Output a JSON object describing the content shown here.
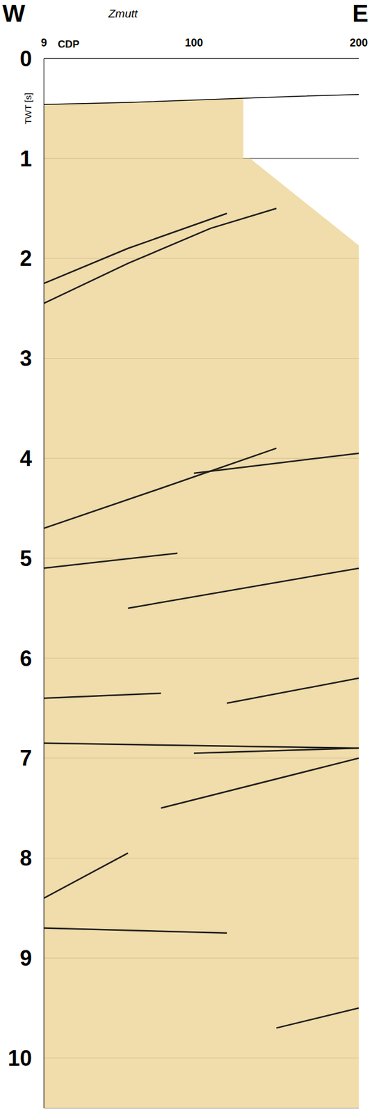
{
  "chart_data": {
    "type": "line",
    "title": "Zmutt",
    "annotations": [
      "W",
      "E"
    ],
    "x_label": "CDP",
    "y_label": "TWT [s]",
    "xlim": [
      9,
      200
    ],
    "xticks": [
      9,
      100,
      200
    ],
    "ylim": [
      0,
      10.5
    ],
    "yticks": [
      0,
      1,
      2,
      3,
      4,
      5,
      6,
      7,
      8,
      9,
      10
    ],
    "grid": true,
    "series": [
      {
        "type": "area",
        "color": "#efd79c",
        "x": [
          9,
          60,
          110,
          130,
          130,
          134,
          200
        ],
        "values": [
          0.46,
          0.44,
          0.41,
          0.4,
          1.0,
          1.0,
          1.87
        ]
      },
      {
        "type": "line",
        "color": "#000000",
        "x": [
          9,
          60,
          110,
          160,
          200
        ],
        "values": [
          0.46,
          0.44,
          0.41,
          0.38,
          0.36
        ]
      },
      {
        "type": "line",
        "color": "#1e1e1e",
        "x": [
          9,
          60,
          110,
          150
        ],
        "values": [
          2.45,
          2.05,
          1.7,
          1.5
        ]
      },
      {
        "type": "line",
        "color": "#1e1e1e",
        "x": [
          9,
          60,
          120
        ],
        "values": [
          2.25,
          1.9,
          1.55
        ]
      },
      {
        "type": "line",
        "color": "#1e1e1e",
        "x": [
          100,
          150,
          200
        ],
        "values": [
          4.15,
          4.05,
          3.95
        ]
      },
      {
        "type": "line",
        "color": "#1e1e1e",
        "x": [
          9,
          80,
          150
        ],
        "values": [
          4.7,
          4.3,
          3.9
        ]
      },
      {
        "type": "line",
        "color": "#1e1e1e",
        "x": [
          9,
          90
        ],
        "values": [
          5.1,
          4.95
        ]
      },
      {
        "type": "line",
        "color": "#1e1e1e",
        "x": [
          60,
          200
        ],
        "values": [
          5.5,
          5.1
        ]
      },
      {
        "type": "line",
        "color": "#1e1e1e",
        "x": [
          120,
          200
        ],
        "values": [
          6.45,
          6.2
        ]
      },
      {
        "type": "line",
        "color": "#1e1e1e",
        "x": [
          9,
          80
        ],
        "values": [
          6.4,
          6.35
        ]
      },
      {
        "type": "line",
        "color": "#1e1e1e",
        "x": [
          9,
          200
        ],
        "values": [
          6.85,
          6.9
        ]
      },
      {
        "type": "line",
        "color": "#1e1e1e",
        "x": [
          100,
          200
        ],
        "values": [
          6.95,
          6.9
        ]
      },
      {
        "type": "line",
        "color": "#1e1e1e",
        "x": [
          80,
          200
        ],
        "values": [
          7.5,
          7.0
        ]
      },
      {
        "type": "line",
        "color": "#1e1e1e",
        "x": [
          9,
          60
        ],
        "values": [
          8.4,
          7.95
        ]
      },
      {
        "type": "line",
        "color": "#1e1e1e",
        "x": [
          9,
          120
        ],
        "values": [
          8.7,
          8.75
        ]
      },
      {
        "type": "line",
        "color": "#1e1e1e",
        "x": [
          150,
          200
        ],
        "values": [
          9.7,
          9.5
        ]
      }
    ]
  }
}
